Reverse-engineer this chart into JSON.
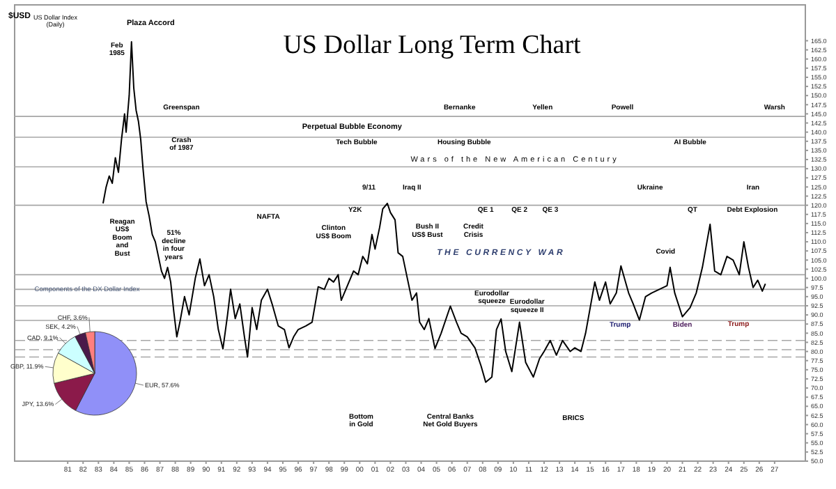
{
  "chart_data": [
    {
      "type": "line",
      "title": "US Dollar Long Term Chart",
      "x": [
        1983.3,
        1983.5,
        1983.7,
        1983.9,
        1984.1,
        1984.3,
        1984.5,
        1984.7,
        1984.8,
        1985.0,
        1985.15,
        1985.3,
        1985.45,
        1985.6,
        1985.75,
        1985.9,
        1986.1,
        1986.3,
        1986.5,
        1986.7,
        1986.9,
        1987.1,
        1987.3,
        1987.5,
        1987.7,
        1987.9,
        1988.1,
        1988.3,
        1988.6,
        1988.9,
        1989.3,
        1989.6,
        1989.9,
        1990.2,
        1990.5,
        1990.8,
        1991.1,
        1991.4,
        1991.6,
        1991.9,
        1992.2,
        1992.5,
        1992.7,
        1993.0,
        1993.3,
        1993.6,
        1994.0,
        1994.3,
        1994.7,
        1995.1,
        1995.4,
        1995.7,
        1996.0,
        1996.5,
        1996.9,
        1997.3,
        1997.7,
        1998.0,
        1998.3,
        1998.6,
        1998.8,
        1999.2,
        1999.6,
        1999.9,
        2000.2,
        2000.5,
        2000.8,
        2001.0,
        2001.3,
        2001.5,
        2001.8,
        2002.0,
        2002.3,
        2002.5,
        2002.8,
        2003.1,
        2003.4,
        2003.7,
        2003.9,
        2004.2,
        2004.5,
        2004.9,
        2005.3,
        2005.9,
        2006.3,
        2006.6,
        2007.0,
        2007.5,
        2007.9,
        2008.2,
        2008.6,
        2008.9,
        2009.2,
        2009.5,
        2009.9,
        2010.4,
        2010.8,
        2011.3,
        2011.7,
        2012.0,
        2012.4,
        2012.8,
        2013.2,
        2013.7,
        2014.0,
        2014.4,
        2014.7,
        2015.0,
        2015.3,
        2015.6,
        2016.0,
        2016.3,
        2016.7,
        2017.0,
        2017.5,
        2017.8,
        2018.2,
        2018.6,
        2019.0,
        2019.5,
        2020.0,
        2020.2,
        2020.5,
        2021.0,
        2021.5,
        2021.9,
        2022.3,
        2022.8,
        2023.1,
        2023.5,
        2023.9,
        2024.3,
        2024.7,
        2025.0,
        2025.3,
        2025.6,
        2025.9,
        2026.2,
        2026.4
      ],
      "series": [
        {
          "color": "#000000",
          "values": [
            120.5,
            125,
            128,
            126,
            133,
            129,
            138,
            145,
            140,
            150,
            164.7,
            152,
            146,
            143,
            138,
            130,
            121,
            117,
            112,
            110,
            106,
            102,
            100,
            103,
            99,
            91,
            84,
            88,
            95,
            90,
            100,
            105.3,
            98,
            101,
            95,
            86,
            80.7,
            90,
            97,
            89,
            93,
            84,
            78.5,
            92,
            86,
            94,
            97,
            93,
            87,
            86,
            81,
            84,
            86,
            87,
            88,
            97.7,
            97,
            100,
            99,
            101,
            94,
            98,
            102,
            101,
            106,
            104,
            112,
            108,
            114,
            119,
            120.5,
            118,
            116,
            107,
            106,
            100,
            94,
            96,
            88,
            86,
            89,
            80.8,
            85,
            92.4,
            88,
            85,
            84,
            81,
            76,
            71.6,
            73,
            86,
            88.9,
            80,
            74.5,
            88,
            77,
            73,
            78,
            80,
            83,
            79,
            83,
            80,
            81,
            80,
            85,
            92,
            99,
            94,
            99,
            93,
            96,
            103.4,
            96,
            93,
            88.6,
            95,
            96,
            97,
            98,
            103,
            96,
            89.5,
            92,
            96,
            103,
            114.8,
            102,
            101,
            106,
            105,
            101,
            110,
            103,
            97.5,
            99.5,
            96.5,
            98.5
          ]
        }
      ],
      "xlim": [
        1977.5,
        2029
      ],
      "xticks": [
        {
          "value": 1981,
          "label": "81"
        },
        {
          "value": 1982,
          "label": "82"
        },
        {
          "value": 1983,
          "label": "83"
        },
        {
          "value": 1984,
          "label": "84"
        },
        {
          "value": 1985,
          "label": "85"
        },
        {
          "value": 1986,
          "label": "86"
        },
        {
          "value": 1987,
          "label": "87"
        },
        {
          "value": 1988,
          "label": "88"
        },
        {
          "value": 1989,
          "label": "89"
        },
        {
          "value": 1990,
          "label": "90"
        },
        {
          "value": 1991,
          "label": "91"
        },
        {
          "value": 1992,
          "label": "92"
        },
        {
          "value": 1993,
          "label": "93"
        },
        {
          "value": 1994,
          "label": "94"
        },
        {
          "value": 1995,
          "label": "95"
        },
        {
          "value": 1996,
          "label": "96"
        },
        {
          "value": 1997,
          "label": "97"
        },
        {
          "value": 1998,
          "label": "98"
        },
        {
          "value": 1999,
          "label": "99"
        },
        {
          "value": 2000,
          "label": "00"
        },
        {
          "value": 2001,
          "label": "01"
        },
        {
          "value": 2002,
          "label": "02"
        },
        {
          "value": 2003,
          "label": "03"
        },
        {
          "value": 2004,
          "label": "04"
        },
        {
          "value": 2005,
          "label": "05"
        },
        {
          "value": 2006,
          "label": "06"
        },
        {
          "value": 2007,
          "label": "07"
        },
        {
          "value": 2008,
          "label": "08"
        },
        {
          "value": 2009,
          "label": "09"
        },
        {
          "value": 2010,
          "label": "10"
        },
        {
          "value": 2011,
          "label": "11"
        },
        {
          "value": 2012,
          "label": "12"
        },
        {
          "value": 2013,
          "label": "13"
        },
        {
          "value": 2014,
          "label": "14"
        },
        {
          "value": 2015,
          "label": "15"
        },
        {
          "value": 2016,
          "label": "16"
        },
        {
          "value": 2017,
          "label": "17"
        },
        {
          "value": 2018,
          "label": "18"
        },
        {
          "value": 2019,
          "label": "19"
        },
        {
          "value": 2020,
          "label": "20"
        },
        {
          "value": 2021,
          "label": "21"
        },
        {
          "value": 2022,
          "label": "22"
        },
        {
          "value": 2023,
          "label": "23"
        },
        {
          "value": 2024,
          "label": "24"
        },
        {
          "value": 2025,
          "label": "25"
        },
        {
          "value": 2026,
          "label": "26"
        },
        {
          "value": 2027,
          "label": "27"
        }
      ],
      "ylim": [
        50,
        175
      ],
      "yticks": [
        {
          "value": 50,
          "label": "50.0"
        },
        {
          "value": 52.5,
          "label": "52.5"
        },
        {
          "value": 55,
          "label": "55.0"
        },
        {
          "value": 57.5,
          "label": "57.5"
        },
        {
          "value": 60,
          "label": "60.0"
        },
        {
          "value": 62.5,
          "label": "62.5"
        },
        {
          "value": 65,
          "label": "65.0"
        },
        {
          "value": 67.5,
          "label": "67.5"
        },
        {
          "value": 70,
          "label": "70.0"
        },
        {
          "value": 72.5,
          "label": "72.5"
        },
        {
          "value": 75,
          "label": "75.0"
        },
        {
          "value": 77.5,
          "label": "77.5"
        },
        {
          "value": 80,
          "label": "80.0"
        },
        {
          "value": 82.5,
          "label": "82.5"
        },
        {
          "value": 85,
          "label": "85.0"
        },
        {
          "value": 87.5,
          "label": "87.5"
        },
        {
          "value": 90,
          "label": "90.0"
        },
        {
          "value": 92.5,
          "label": "92.5"
        },
        {
          "value": 95,
          "label": "95.0"
        },
        {
          "value": 97.5,
          "label": "97.5"
        },
        {
          "value": 100,
          "label": "100.0"
        },
        {
          "value": 102.5,
          "label": "102.5"
        },
        {
          "value": 105,
          "label": "105.0"
        },
        {
          "value": 107.5,
          "label": "107.5"
        },
        {
          "value": 110,
          "label": "110.0"
        },
        {
          "value": 112.5,
          "label": "112.5"
        },
        {
          "value": 115,
          "label": "115.0"
        },
        {
          "value": 117.5,
          "label": "117.5"
        },
        {
          "value": 120,
          "label": "120.0"
        },
        {
          "value": 122.5,
          "label": "122.5"
        },
        {
          "value": 125,
          "label": "125.0"
        },
        {
          "value": 127.5,
          "label": "127.5"
        },
        {
          "value": 130,
          "label": "130.0"
        },
        {
          "value": 132.5,
          "label": "132.5"
        },
        {
          "value": 135,
          "label": "135.0"
        },
        {
          "value": 137.5,
          "label": "137.5"
        },
        {
          "value": 140,
          "label": "140.0"
        },
        {
          "value": 142.5,
          "label": "142.5"
        },
        {
          "value": 145,
          "label": "145.0"
        },
        {
          "value": 147.5,
          "label": "147.5"
        },
        {
          "value": 150,
          "label": "150.0"
        },
        {
          "value": 152.5,
          "label": "152.5"
        },
        {
          "value": 155,
          "label": "155.0"
        },
        {
          "value": 157.5,
          "label": "157.5"
        },
        {
          "value": 160,
          "label": "160.0"
        },
        {
          "value": 162.5,
          "label": "162.5"
        },
        {
          "value": 165,
          "label": "165.0"
        }
      ],
      "ref_lines": [
        {
          "axis": "y",
          "value": 144.3,
          "color": "#a6a6a6",
          "line_style": "solid"
        },
        {
          "axis": "y",
          "value": 138.6,
          "color": "#a6a6a6",
          "line_style": "solid"
        },
        {
          "axis": "y",
          "value": 130.5,
          "color": "#a6a6a6",
          "line_style": "solid"
        },
        {
          "axis": "y",
          "value": 120,
          "color": "#a6a6a6",
          "line_style": "solid"
        },
        {
          "axis": "y",
          "value": 101,
          "color": "#a6a6a6",
          "line_style": "solid"
        },
        {
          "axis": "y",
          "value": 97,
          "color": "#a6a6a6",
          "line_style": "solid"
        },
        {
          "axis": "y",
          "value": 92.5,
          "color": "#a6a6a6",
          "line_style": "solid"
        },
        {
          "axis": "y",
          "value": 88.5,
          "color": "#a6a6a6",
          "line_style": "solid"
        },
        {
          "axis": "y",
          "value": 83,
          "color": "#a6a6a6",
          "line_style": "dashed"
        },
        {
          "axis": "y",
          "value": 80.5,
          "color": "#a6a6a6",
          "line_style": "dashed"
        },
        {
          "axis": "y",
          "value": 78.5,
          "color": "#a6a6a6",
          "line_style": "dashed"
        }
      ],
      "annotations": [
        "$USD",
        "US Dollar Index\n(Daily)",
        "Plaza Accord",
        "Feb\n1985",
        "Greenspan",
        "Bernanke",
        "Yellen",
        "Powell",
        "Warsh",
        "Perpetual Bubble Economy",
        "Crash\nof 1987",
        "Tech Bubble",
        "Housing Bubble",
        "AI Bubble",
        "Wars of the New American Century",
        "9/11",
        "Iraq II",
        "Ukraine",
        "Iran",
        "Y2K",
        "QE 1",
        "QE 2",
        "QE 3",
        "QT",
        "Debt Explosion",
        "Clinton\nUS$ Boom",
        "Bush II\nUS$ Bust",
        "Credit\nCrisis",
        "Reagan\nUS$\nBoom\nand\nBust",
        "51%\ndecline\nin four\nyears",
        "NAFTA",
        "THE CURRENCY WAR",
        "Eurodollar\nsqueeze",
        "Eurodollar\nsqueeze II",
        "Covid",
        "Trump",
        "Biden",
        "Trump",
        "Bottom\nin Gold",
        "Central Banks\nNet Gold Buyers",
        "BRICS"
      ]
    },
    {
      "type": "pie",
      "title": "Components of the DX Dollar Index",
      "categories": [
        "EUR",
        "JPY",
        "GBP",
        "CAD",
        "SEK",
        "CHF"
      ],
      "values": [
        57.6,
        13.6,
        11.9,
        9.1,
        4.2,
        3.6
      ],
      "value_labels": [
        "57.6%",
        "13.6%",
        "11.9%",
        "9.1%",
        "4.2%",
        "3.6%"
      ],
      "colors": [
        "#9090f8",
        "#8b1a4a",
        "#ffffcc",
        "#ccffff",
        "#4a1a4a",
        "#ff7f7f"
      ]
    }
  ]
}
